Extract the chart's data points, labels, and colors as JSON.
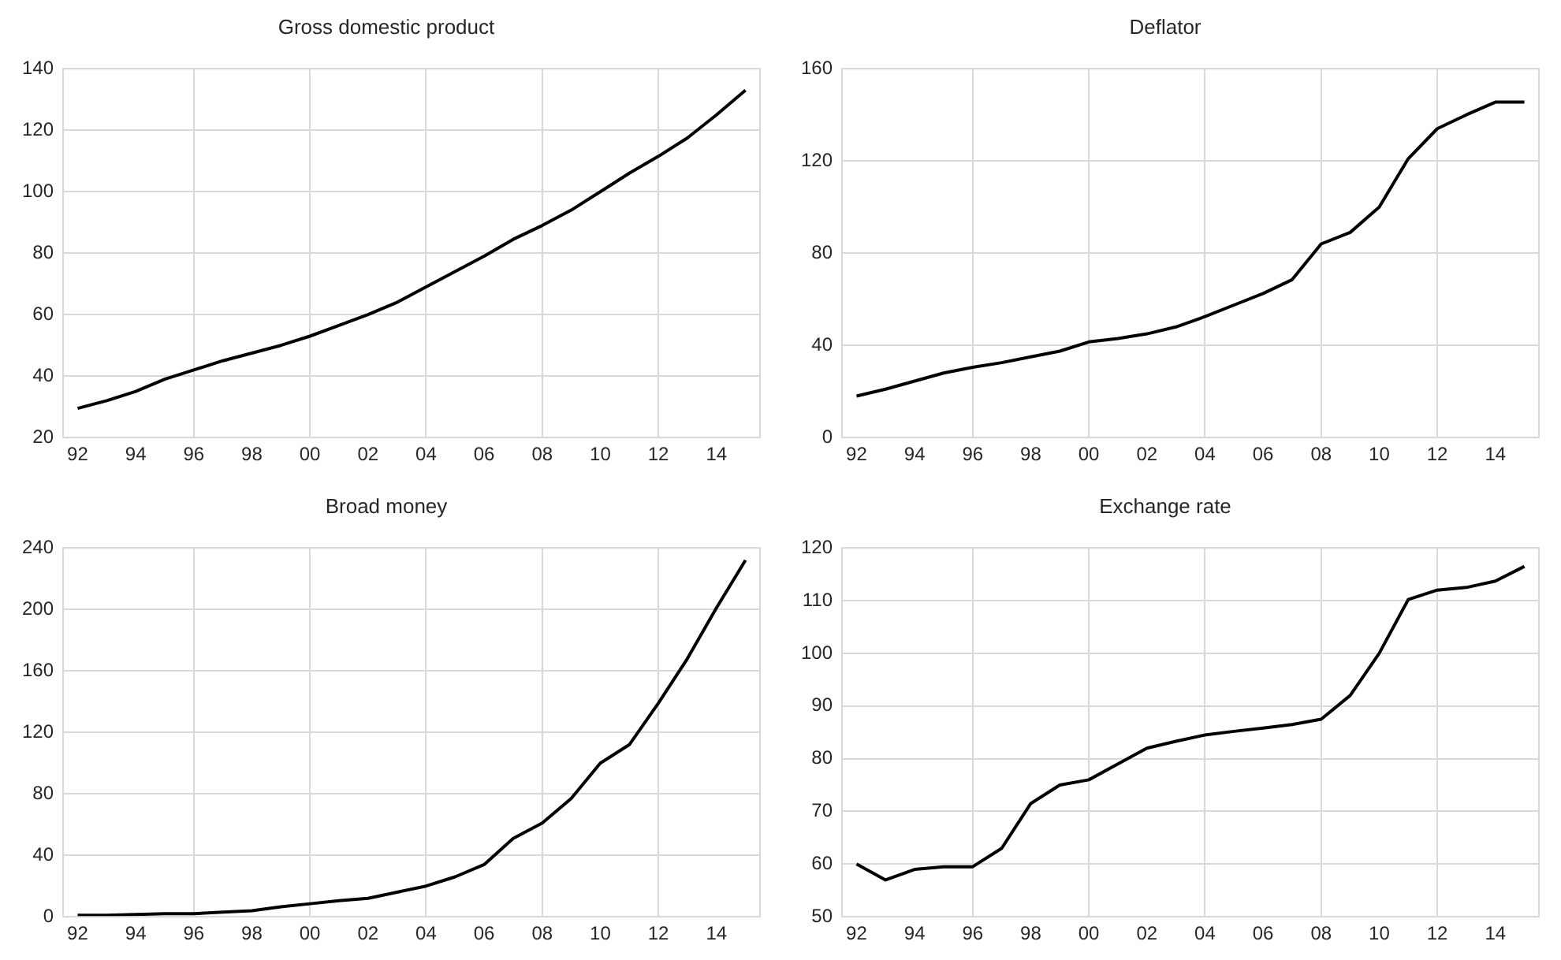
{
  "chart_data": [
    {
      "type": "line",
      "title": "Gross domestic product",
      "categories": [
        "92",
        null,
        "94",
        null,
        "96",
        null,
        "98",
        null,
        "00",
        null,
        "02",
        null,
        "04",
        null,
        "06",
        null,
        "08",
        null,
        "10",
        null,
        "12",
        null,
        "14",
        null
      ],
      "series": [
        {
          "color": "#000000",
          "values": [
            29.5,
            32,
            35,
            39,
            42,
            45,
            47.5,
            50,
            53,
            56.5,
            60,
            64,
            69,
            74,
            79,
            84.5,
            89,
            94,
            100,
            106,
            111.5,
            117.5,
            125,
            133
          ]
        }
      ],
      "ylim": [
        20,
        140
      ],
      "yticks": [
        20,
        40,
        60,
        80,
        100,
        120,
        140
      ],
      "grid": true,
      "legend": false,
      "marker": "none",
      "line_style": "solid"
    },
    {
      "type": "line",
      "title": "Deflator",
      "categories": [
        "92",
        null,
        "94",
        null,
        "96",
        null,
        "98",
        null,
        "00",
        null,
        "02",
        null,
        "04",
        null,
        "06",
        null,
        "08",
        null,
        "10",
        null,
        "12",
        null,
        "14",
        null
      ],
      "series": [
        {
          "color": "#000000",
          "values": [
            18,
            21,
            24.5,
            28,
            30.5,
            32.5,
            35,
            37.5,
            41.5,
            43,
            45,
            48,
            52.5,
            57.5,
            62.5,
            68.5,
            84,
            89,
            100,
            121,
            134,
            140,
            145.5,
            145.5
          ]
        }
      ],
      "ylim": [
        0,
        160
      ],
      "yticks": [
        0,
        40,
        80,
        120,
        160
      ],
      "grid": true,
      "legend": false,
      "marker": "none",
      "line_style": "solid"
    },
    {
      "type": "line",
      "title": "Broad money",
      "categories": [
        "92",
        null,
        "94",
        null,
        "96",
        null,
        "98",
        null,
        "00",
        null,
        "02",
        null,
        "04",
        null,
        "06",
        null,
        "08",
        null,
        "10",
        null,
        "12",
        null,
        "14",
        null
      ],
      "series": [
        {
          "color": "#000000",
          "values": [
            1,
            1,
            1.5,
            2,
            2,
            3,
            4,
            6.5,
            8.5,
            10.5,
            12,
            16,
            20,
            26,
            34,
            51,
            61,
            77,
            100,
            112,
            139,
            168,
            201,
            232
          ]
        }
      ],
      "ylim": [
        0,
        240
      ],
      "yticks": [
        0,
        40,
        80,
        120,
        160,
        200,
        240
      ],
      "grid": true,
      "legend": false,
      "marker": "none",
      "line_style": "solid"
    },
    {
      "type": "line",
      "title": "Exchange rate",
      "categories": [
        "92",
        null,
        "94",
        null,
        "96",
        null,
        "98",
        null,
        "00",
        null,
        "02",
        null,
        "04",
        null,
        "06",
        null,
        "08",
        null,
        "10",
        null,
        "12",
        null,
        "14",
        null
      ],
      "series": [
        {
          "color": "#000000",
          "values": [
            60,
            57,
            59,
            59.5,
            59.5,
            63,
            71.5,
            75,
            76,
            79,
            82,
            83.3,
            84.5,
            85.2,
            85.8,
            86.5,
            87.5,
            92,
            100,
            110.2,
            112,
            112.5,
            113.7,
            116.5
          ]
        }
      ],
      "ylim": [
        50,
        120
      ],
      "yticks": [
        50,
        60,
        70,
        80,
        90,
        100,
        110,
        120
      ],
      "grid": true,
      "legend": false,
      "marker": "none",
      "line_style": "solid"
    }
  ]
}
